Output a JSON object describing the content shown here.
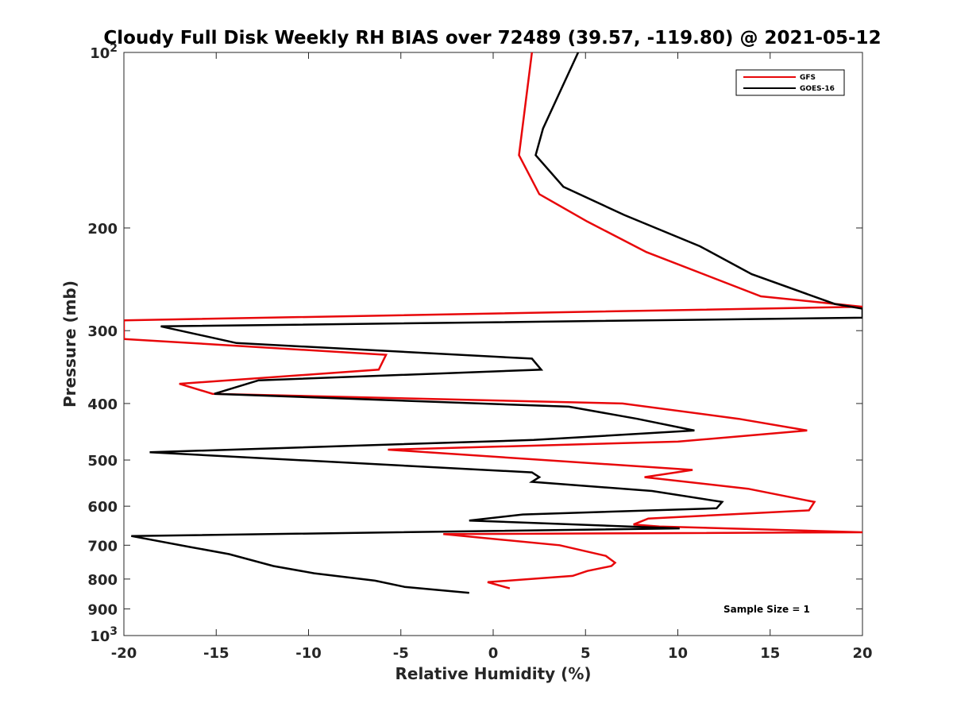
{
  "chart_data": {
    "type": "line",
    "title": "Cloudy Full Disk Weekly RH BIAS over 72489 (39.57, -119.80) @ 2021-05-12",
    "xlabel": "Relative Humidity (%)",
    "ylabel": "Pressure (mb)",
    "xlim": [
      -20,
      20
    ],
    "ylim": [
      100,
      1000
    ],
    "y_scale": "log",
    "y_reversed": true,
    "x_ticks": [
      "-20",
      "-15",
      "-10",
      "-5",
      "0",
      "5",
      "10",
      "15",
      "20"
    ],
    "y_ticks": [
      {
        "value": 100,
        "base": "10",
        "exp": "2"
      },
      {
        "value": 200,
        "label": "200"
      },
      {
        "value": 300,
        "label": "300"
      },
      {
        "value": 400,
        "label": "400"
      },
      {
        "value": 500,
        "label": "500"
      },
      {
        "value": 600,
        "label": "600"
      },
      {
        "value": 700,
        "label": "700"
      },
      {
        "value": 800,
        "label": "800"
      },
      {
        "value": 900,
        "label": "900"
      },
      {
        "value": 1000,
        "base": "10",
        "exp": "3"
      }
    ],
    "grid": false,
    "legend_position": "top-right",
    "annotation": "Sample Size = 1",
    "series": [
      {
        "name": "GFS",
        "color": "#e8070a",
        "points": [
          [
            2.1,
            100
          ],
          [
            1.4,
            150
          ],
          [
            2.5,
            175
          ],
          [
            5.1,
            195
          ],
          [
            8.3,
            220
          ],
          [
            14.5,
            262
          ],
          [
            20,
            273
          ],
          [
            -20,
            288
          ],
          [
            -20,
            310
          ],
          [
            -5.8,
            330
          ],
          [
            -6.2,
            350
          ],
          [
            -17,
            370
          ],
          [
            -15.2,
            385
          ],
          [
            7,
            400
          ],
          [
            13.3,
            425
          ],
          [
            17,
            445
          ],
          [
            10,
            465
          ],
          [
            -5.7,
            480
          ],
          [
            10.8,
            520
          ],
          [
            8.2,
            535
          ],
          [
            13.8,
            560
          ],
          [
            17.4,
            590
          ],
          [
            17.1,
            610
          ],
          [
            8.4,
            630
          ],
          [
            7.6,
            645
          ],
          [
            9,
            650
          ],
          [
            20,
            665
          ],
          [
            -2.7,
            670
          ],
          [
            3.6,
            700
          ],
          [
            6.1,
            730
          ],
          [
            6.6,
            750
          ],
          [
            6.4,
            760
          ],
          [
            5.1,
            775
          ],
          [
            4.3,
            790
          ],
          [
            -0.3,
            810
          ],
          [
            0.9,
            830
          ]
        ]
      },
      {
        "name": "GOES-16",
        "color": "#000000",
        "points": [
          [
            4.6,
            100
          ],
          [
            2.7,
            135
          ],
          [
            2.3,
            150
          ],
          [
            3.8,
            170
          ],
          [
            7.1,
            190
          ],
          [
            11.2,
            215
          ],
          [
            14,
            240
          ],
          [
            18.5,
            270
          ],
          [
            20,
            275
          ],
          [
            20,
            285
          ],
          [
            -18,
            295
          ],
          [
            -13.9,
            315
          ],
          [
            2.1,
            335
          ],
          [
            2.6,
            350
          ],
          [
            -12.7,
            365
          ],
          [
            -15.1,
            385
          ],
          [
            4.1,
            405
          ],
          [
            7.8,
            425
          ],
          [
            10.9,
            445
          ],
          [
            2.2,
            462
          ],
          [
            -18.6,
            485
          ],
          [
            2.1,
            525
          ],
          [
            2.5,
            535
          ],
          [
            2.1,
            545
          ],
          [
            8.6,
            565
          ],
          [
            12.4,
            590
          ],
          [
            12.1,
            605
          ],
          [
            1.6,
            620
          ],
          [
            -1.3,
            635
          ],
          [
            10.1,
            655
          ],
          [
            -19.6,
            675
          ],
          [
            -16.4,
            705
          ],
          [
            -14.3,
            725
          ],
          [
            -11.9,
            760
          ],
          [
            -9.7,
            782
          ],
          [
            -6.4,
            805
          ],
          [
            -4.8,
            825
          ],
          [
            -1.3,
            845
          ]
        ]
      }
    ]
  }
}
